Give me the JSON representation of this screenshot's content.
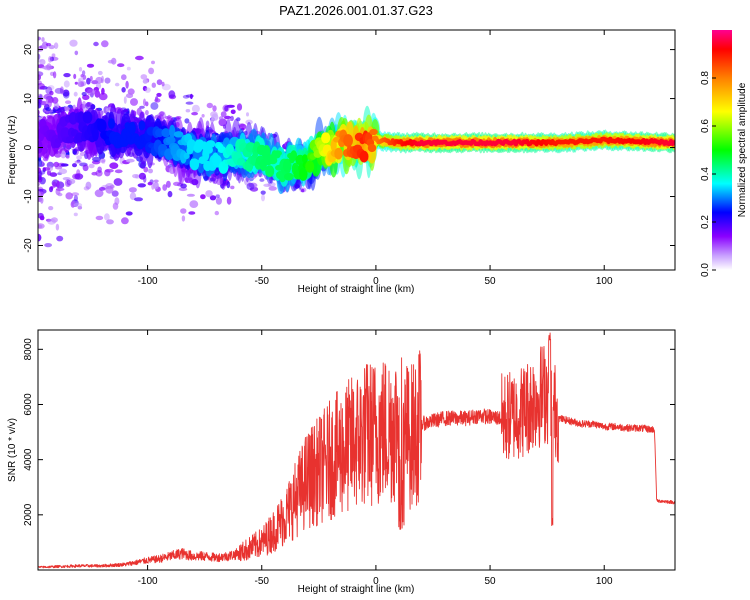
{
  "figure_title": "PAZ1.2026.001.01.37.G23",
  "chart_data": [
    {
      "type": "heatmap",
      "title": "PAZ1.2026.001.01.37.G23",
      "xlabel": "Height of straight line (km)",
      "ylabel": "Frequency (Hz)",
      "xlim": [
        -148,
        131
      ],
      "ylim": [
        -25,
        24
      ],
      "xticks": [
        -100,
        -50,
        0,
        50,
        100
      ],
      "yticks": [
        -20,
        -10,
        0,
        10,
        20
      ],
      "xtick_labels": [
        "-100",
        "-50",
        "0",
        "50",
        "100"
      ],
      "ytick_labels": [
        "-20",
        "-10",
        "0",
        "10",
        "20"
      ],
      "colorbar": {
        "label": "Normalized spectral amplitude",
        "range": [
          0,
          1
        ],
        "ticks": [
          0.0,
          0.2,
          0.4,
          0.6,
          0.8
        ],
        "tick_labels": [
          "0.0",
          "0.2",
          "0.4",
          "0.6",
          "0.8"
        ],
        "colormap": [
          "#ffffff",
          "#8a00ff",
          "#0000ff",
          "#00ffff",
          "#00ff00",
          "#ffff00",
          "#ff8000",
          "#ff0000",
          "#ff00a0"
        ]
      },
      "ridge": {
        "x": [
          -148,
          -130,
          -115,
          -100,
          -90,
          -80,
          -70,
          -60,
          -50,
          -40,
          -30,
          -25,
          -20,
          -15,
          -10,
          -5,
          0,
          10,
          20,
          40,
          60,
          80,
          100,
          131
        ],
        "y": [
          2,
          4,
          3,
          2,
          1,
          -1,
          -2,
          -1,
          -2,
          -4,
          -3,
          -1,
          0,
          0.5,
          1,
          0.5,
          1.5,
          1,
          1,
          1,
          1,
          1,
          1.5,
          1
        ],
        "amplitude": [
          0.15,
          0.2,
          0.25,
          0.25,
          0.3,
          0.35,
          0.35,
          0.4,
          0.45,
          0.45,
          0.5,
          0.6,
          0.7,
          0.8,
          0.85,
          0.9,
          0.8,
          0.9,
          0.95,
          0.95,
          0.95,
          0.9,
          0.9,
          0.95
        ]
      }
    },
    {
      "type": "line",
      "xlabel": "Height of straight line (km)",
      "ylabel": "SNR (10 * v/v)",
      "xlim": [
        -148,
        131
      ],
      "ylim": [
        0,
        8700
      ],
      "xticks": [
        -100,
        -50,
        0,
        50,
        100
      ],
      "yticks": [
        2000,
        4000,
        6000,
        8000
      ],
      "xtick_labels": [
        "-100",
        "-50",
        "0",
        "50",
        "100"
      ],
      "ytick_labels": [
        "2000",
        "4000",
        "6000",
        "8000"
      ],
      "color": "#e8322f",
      "series": [
        {
          "name": "SNR",
          "x": [
            -148,
            -130,
            -120,
            -110,
            -100,
            -95,
            -90,
            -85,
            -80,
            -75,
            -70,
            -65,
            -60,
            -55,
            -50,
            -45,
            -40,
            -35,
            -30,
            -25,
            -20,
            -15,
            -10,
            -5,
            0,
            5,
            10,
            15,
            20,
            25,
            30,
            35,
            40,
            45,
            50,
            55,
            60,
            65,
            70,
            75,
            80,
            85,
            90,
            95,
            100,
            105,
            110,
            115,
            120,
            122,
            123,
            125,
            131
          ],
          "y": [
            100,
            150,
            150,
            200,
            350,
            400,
            500,
            600,
            500,
            500,
            450,
            500,
            600,
            800,
            1000,
            1400,
            1900,
            2600,
            3300,
            3600,
            4000,
            4300,
            4600,
            4900,
            5000,
            5100,
            5300,
            4800,
            5300,
            5400,
            5500,
            5500,
            5500,
            5600,
            5550,
            5500,
            5600,
            5800,
            6200,
            6500,
            5500,
            5400,
            5300,
            5300,
            5200,
            5200,
            5150,
            5150,
            5100,
            5100,
            2500,
            2500,
            2450
          ],
          "peak": 8600,
          "peak_x": 76
        }
      ]
    }
  ]
}
